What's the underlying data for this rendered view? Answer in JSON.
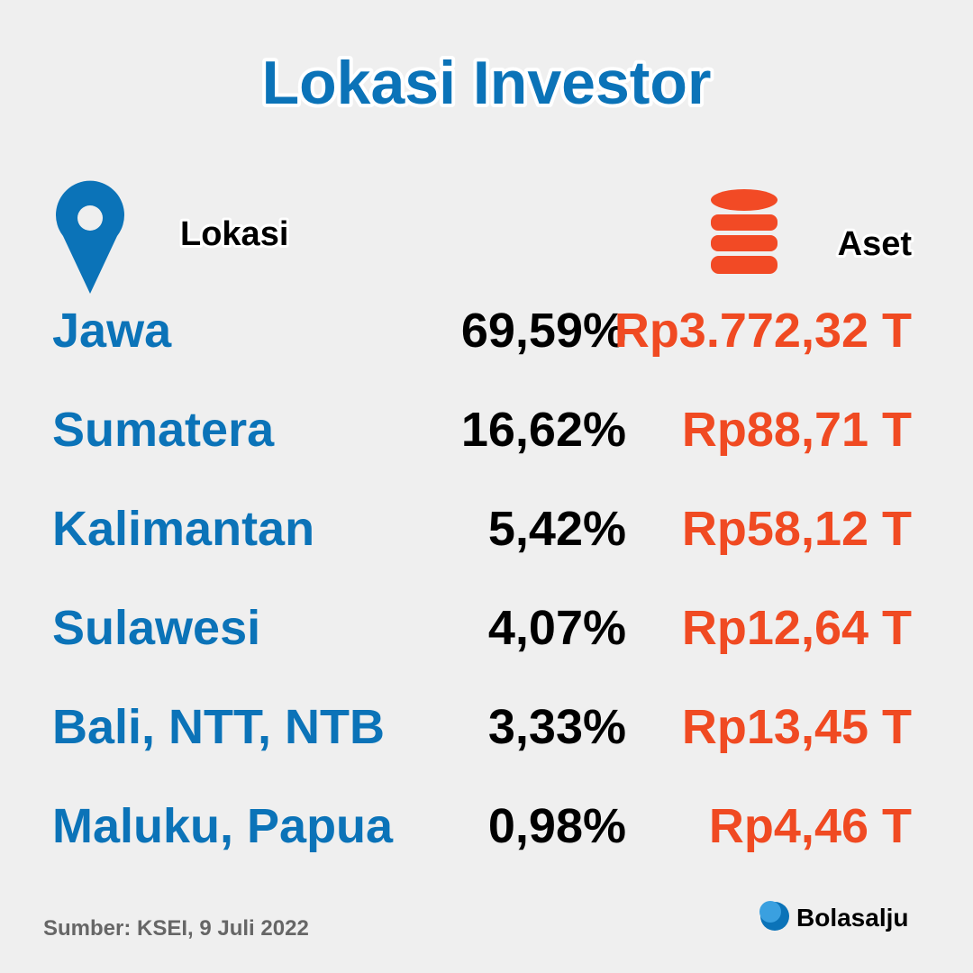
{
  "title": "Lokasi Investor",
  "headers": {
    "location": "Lokasi",
    "assets": "Aset"
  },
  "table": {
    "rows": [
      [
        "Jawa",
        "69,59%",
        "Rp3.772,32 T"
      ],
      [
        "Sumatera",
        "16,62%",
        "Rp88,71 T"
      ],
      [
        "Kalimantan",
        "5,42%",
        "Rp58,12 T"
      ],
      [
        "Sulawesi",
        "4,07%",
        "Rp12,64 T"
      ],
      [
        "Bali, NTT, NTB",
        "3,33%",
        "Rp13,45 T"
      ],
      [
        "Maluku, Papua",
        "0,98%",
        "Rp4,46 T"
      ]
    ]
  },
  "footer": {
    "source": "Sumber: KSEI, 9 Juli 2022",
    "brand": "Bolasalju"
  }
}
